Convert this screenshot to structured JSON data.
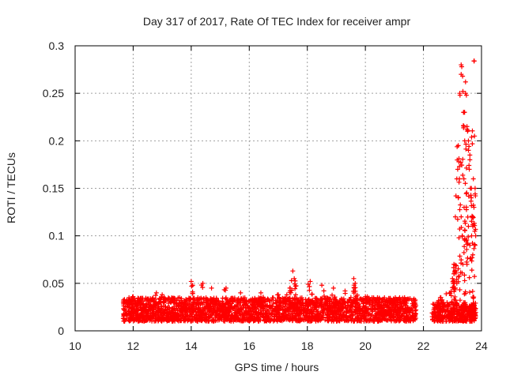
{
  "chart_data": {
    "type": "scatter",
    "title": "Day 317 of 2017, Rate Of TEC Index for receiver ampr",
    "xlabel": "GPS time / hours",
    "ylabel": "ROTI / TECUs",
    "xlim": [
      10,
      24
    ],
    "ylim": [
      0,
      0.3
    ],
    "x_ticks": [
      "10",
      "12",
      "14",
      "16",
      "18",
      "20",
      "22",
      "24"
    ],
    "y_ticks": [
      "0",
      "0.05",
      "0.1",
      "0.15",
      "0.2",
      "0.25",
      "0.3"
    ],
    "grid": true,
    "marker": "+",
    "colors": {
      "marker": "#ff0000",
      "grid": "#a0a0a0",
      "axis": "#000000",
      "text": "#222222"
    },
    "series": [
      {
        "name": "ROTI",
        "segments": [
          {
            "x_start": 11.65,
            "x_end": 21.75,
            "baseline_range": [
              0.01,
              0.035
            ]
          },
          {
            "x_start": 22.3,
            "x_end": 23.8,
            "baseline_range": [
              0.01,
              0.03
            ]
          }
        ],
        "peaks": [
          [
            11.7,
            0.033
          ],
          [
            12.0,
            0.036
          ],
          [
            12.8,
            0.04
          ],
          [
            13.0,
            0.038
          ],
          [
            13.6,
            0.035
          ],
          [
            14.0,
            0.052
          ],
          [
            14.05,
            0.048
          ],
          [
            14.4,
            0.05
          ],
          [
            14.7,
            0.045
          ],
          [
            15.2,
            0.045
          ],
          [
            15.7,
            0.04
          ],
          [
            16.4,
            0.04
          ],
          [
            17.0,
            0.038
          ],
          [
            17.4,
            0.045
          ],
          [
            17.5,
            0.063
          ],
          [
            17.55,
            0.055
          ],
          [
            18.1,
            0.052
          ],
          [
            18.5,
            0.048
          ],
          [
            18.9,
            0.045
          ],
          [
            19.3,
            0.042
          ],
          [
            19.6,
            0.055
          ],
          [
            19.65,
            0.05
          ],
          [
            20.0,
            0.036
          ],
          [
            20.6,
            0.03
          ],
          [
            21.6,
            0.024
          ],
          [
            22.4,
            0.02
          ],
          [
            22.6,
            0.035
          ],
          [
            22.9,
            0.04
          ],
          [
            23.0,
            0.055
          ],
          [
            23.05,
            0.07
          ],
          [
            23.1,
            0.12
          ],
          [
            23.15,
            0.16
          ],
          [
            23.2,
            0.195
          ],
          [
            23.25,
            0.25
          ],
          [
            23.3,
            0.28
          ],
          [
            23.35,
            0.268
          ],
          [
            23.4,
            0.23
          ],
          [
            23.45,
            0.25
          ],
          [
            23.5,
            0.215
          ],
          [
            23.55,
            0.2
          ],
          [
            23.6,
            0.185
          ],
          [
            23.65,
            0.15
          ],
          [
            23.7,
            0.12
          ],
          [
            23.75,
            0.284
          ],
          [
            23.78,
            0.09
          ]
        ],
        "high_points": [
          [
            23.12,
            0.142
          ],
          [
            23.18,
            0.17
          ],
          [
            23.22,
            0.178
          ],
          [
            23.26,
            0.248
          ],
          [
            23.3,
            0.27
          ],
          [
            23.32,
            0.278
          ],
          [
            23.36,
            0.252
          ],
          [
            23.38,
            0.23
          ],
          [
            23.42,
            0.2
          ],
          [
            23.45,
            0.262
          ],
          [
            23.48,
            0.248
          ],
          [
            23.5,
            0.212
          ],
          [
            23.52,
            0.21
          ],
          [
            23.55,
            0.19
          ],
          [
            23.58,
            0.17
          ],
          [
            23.6,
            0.18
          ],
          [
            23.62,
            0.15
          ],
          [
            23.65,
            0.14
          ],
          [
            23.68,
            0.12
          ],
          [
            23.7,
            0.11
          ],
          [
            23.72,
            0.16
          ],
          [
            23.74,
            0.284
          ],
          [
            23.76,
            0.205
          ],
          [
            23.78,
            0.15
          ],
          [
            23.8,
            0.1
          ],
          [
            23.2,
            0.14
          ],
          [
            23.24,
            0.16
          ],
          [
            23.3,
            0.12
          ],
          [
            23.34,
            0.1
          ],
          [
            23.4,
            0.13
          ],
          [
            23.46,
            0.095
          ],
          [
            23.5,
            0.07
          ],
          [
            23.55,
            0.11
          ],
          [
            23.6,
            0.09
          ],
          [
            23.66,
            0.1
          ],
          [
            23.7,
            0.08
          ],
          [
            23.74,
            0.13
          ],
          [
            23.05,
            0.06
          ],
          [
            23.1,
            0.045
          ],
          [
            23.15,
            0.05
          ]
        ]
      }
    ]
  }
}
